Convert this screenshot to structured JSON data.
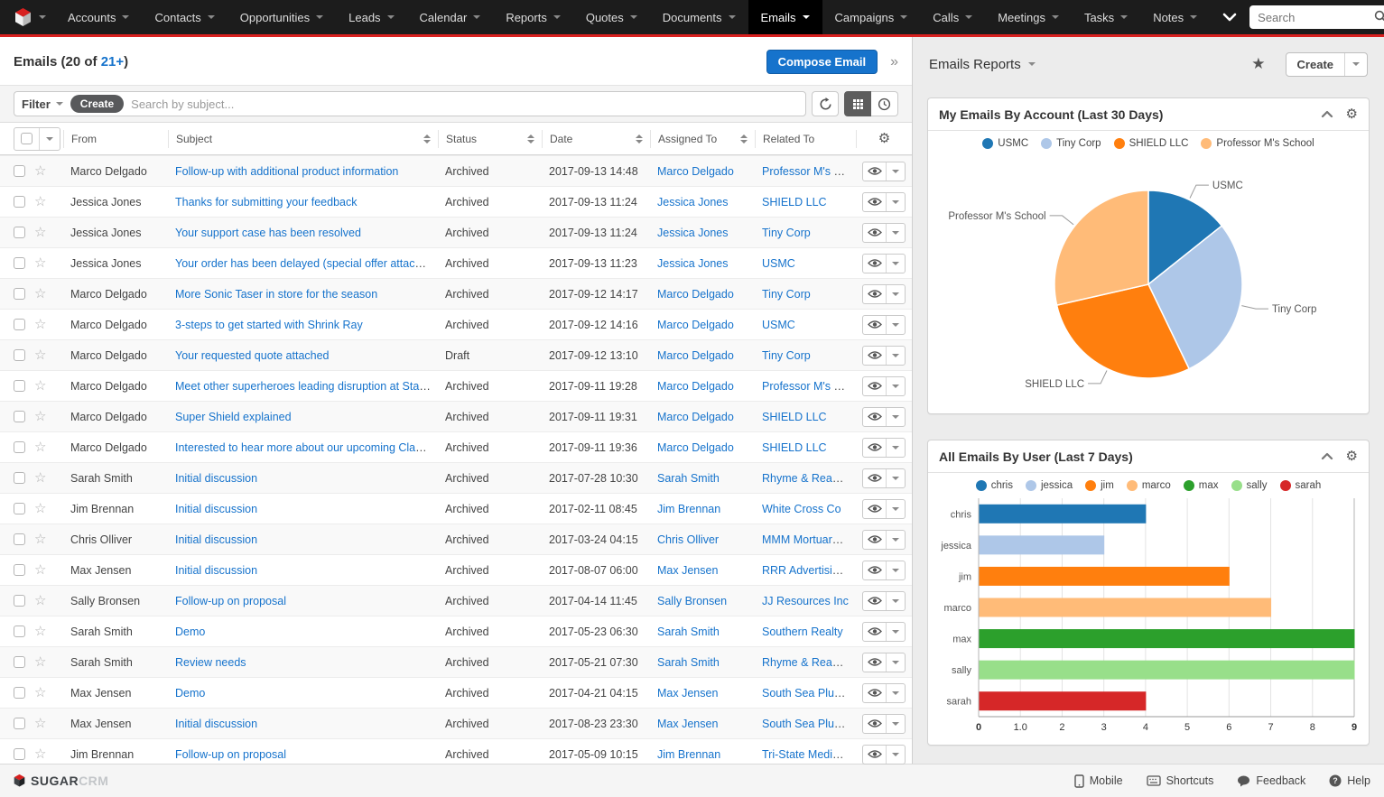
{
  "nav": {
    "items": [
      "Accounts",
      "Contacts",
      "Opportunities",
      "Leads",
      "Calendar",
      "Reports",
      "Quotes",
      "Documents",
      "Emails",
      "Campaigns",
      "Calls",
      "Meetings",
      "Tasks",
      "Notes"
    ],
    "active_item": "Emails",
    "search_placeholder": "Search",
    "notification_count": "0"
  },
  "list_header": {
    "title_prefix": "Emails (20 of ",
    "title_link": "21+",
    "title_suffix": ")",
    "compose_button": "Compose Email",
    "collapse_chevron": "»"
  },
  "filter_bar": {
    "filter_label": "Filter",
    "create_pill": "Create",
    "search_placeholder": "Search by subject..."
  },
  "table": {
    "columns": [
      {
        "label": "From",
        "sortable": false
      },
      {
        "label": "Subject",
        "sortable": true
      },
      {
        "label": "Status",
        "sortable": true
      },
      {
        "label": "Date",
        "sortable": true
      },
      {
        "label": "Assigned To",
        "sortable": true
      },
      {
        "label": "Related To",
        "sortable": false
      }
    ],
    "rows": [
      {
        "from": "Marco Delgado",
        "subject": "Follow-up with additional product information",
        "status": "Archived",
        "date": "2017-09-13 14:48",
        "assigned_to": "Marco Delgado",
        "related_to": "Professor M's Sch..."
      },
      {
        "from": "Jessica Jones",
        "subject": "Thanks for submitting your feedback",
        "status": "Archived",
        "date": "2017-09-13 11:24",
        "assigned_to": "Jessica Jones",
        "related_to": "SHIELD LLC"
      },
      {
        "from": "Jessica Jones",
        "subject": "Your support case has been resolved",
        "status": "Archived",
        "date": "2017-09-13 11:24",
        "assigned_to": "Jessica Jones",
        "related_to": "Tiny Corp"
      },
      {
        "from": "Jessica Jones",
        "subject": "Your order has been delayed (special offer attached)",
        "status": "Archived",
        "date": "2017-09-13 11:23",
        "assigned_to": "Jessica Jones",
        "related_to": "USMC"
      },
      {
        "from": "Marco Delgado",
        "subject": "More Sonic Taser in store for the season",
        "status": "Archived",
        "date": "2017-09-12 14:17",
        "assigned_to": "Marco Delgado",
        "related_to": "Tiny Corp"
      },
      {
        "from": "Marco Delgado",
        "subject": "3-steps to get started with Shrink Ray",
        "status": "Archived",
        "date": "2017-09-12 14:16",
        "assigned_to": "Marco Delgado",
        "related_to": "USMC"
      },
      {
        "from": "Marco Delgado",
        "subject": "Your requested quote attached",
        "status": "Draft",
        "date": "2017-09-12 13:10",
        "assigned_to": "Marco Delgado",
        "related_to": "Tiny Corp"
      },
      {
        "from": "Marco Delgado",
        "subject": "Meet other superheroes leading disruption at StarkCon",
        "status": "Archived",
        "date": "2017-09-11 19:28",
        "assigned_to": "Marco Delgado",
        "related_to": "Professor M's Sch..."
      },
      {
        "from": "Marco Delgado",
        "subject": "Super Shield explained",
        "status": "Archived",
        "date": "2017-09-11 19:31",
        "assigned_to": "Marco Delgado",
        "related_to": "SHIELD LLC"
      },
      {
        "from": "Marco Delgado",
        "subject": "Interested to hear more about our upcoming Claws II?",
        "status": "Archived",
        "date": "2017-09-11 19:36",
        "assigned_to": "Marco Delgado",
        "related_to": "SHIELD LLC"
      },
      {
        "from": "Sarah Smith",
        "subject": "Initial discussion",
        "status": "Archived",
        "date": "2017-07-28 10:30",
        "assigned_to": "Sarah Smith",
        "related_to": "Rhyme & Reason I..."
      },
      {
        "from": "Jim Brennan",
        "subject": "Initial discussion",
        "status": "Archived",
        "date": "2017-02-11 08:45",
        "assigned_to": "Jim Brennan",
        "related_to": "White Cross Co"
      },
      {
        "from": "Chris Olliver",
        "subject": "Initial discussion",
        "status": "Archived",
        "date": "2017-03-24 04:15",
        "assigned_to": "Chris Olliver",
        "related_to": "MMM Mortuary C..."
      },
      {
        "from": "Max Jensen",
        "subject": "Initial discussion",
        "status": "Archived",
        "date": "2017-08-07 06:00",
        "assigned_to": "Max Jensen",
        "related_to": "RRR Advertising Inc."
      },
      {
        "from": "Sally Bronsen",
        "subject": "Follow-up on proposal",
        "status": "Archived",
        "date": "2017-04-14 11:45",
        "assigned_to": "Sally Bronsen",
        "related_to": "JJ Resources Inc"
      },
      {
        "from": "Sarah Smith",
        "subject": "Demo",
        "status": "Archived",
        "date": "2017-05-23 06:30",
        "assigned_to": "Sarah Smith",
        "related_to": "Southern Realty"
      },
      {
        "from": "Sarah Smith",
        "subject": "Review needs",
        "status": "Archived",
        "date": "2017-05-21 07:30",
        "assigned_to": "Sarah Smith",
        "related_to": "Rhyme & Reason I..."
      },
      {
        "from": "Max Jensen",
        "subject": "Demo",
        "status": "Archived",
        "date": "2017-04-21 04:15",
        "assigned_to": "Max Jensen",
        "related_to": "South Sea Plumbi..."
      },
      {
        "from": "Max Jensen",
        "subject": "Initial discussion",
        "status": "Archived",
        "date": "2017-08-23 23:30",
        "assigned_to": "Max Jensen",
        "related_to": "South Sea Plumbi..."
      },
      {
        "from": "Jim Brennan",
        "subject": "Follow-up on proposal",
        "status": "Archived",
        "date": "2017-05-09 10:15",
        "assigned_to": "Jim Brennan",
        "related_to": "Tri-State Medical ..."
      }
    ]
  },
  "reports_panel": {
    "title": "Emails Reports",
    "create_button": "Create"
  },
  "chart_data": [
    {
      "type": "pie",
      "title": "My Emails By Account (Last 30 Days)",
      "labels": [
        "USMC",
        "Tiny Corp",
        "SHIELD LLC",
        "Professor M's School"
      ],
      "values": [
        2,
        4,
        4,
        4
      ],
      "colors": [
        "#1f77b4",
        "#aec7e8",
        "#ff7f0e",
        "#ffbb78"
      ],
      "legend_position": "top"
    },
    {
      "type": "bar",
      "orientation": "horizontal",
      "title": "All Emails By User (Last 7 Days)",
      "categories": [
        "chris",
        "jessica",
        "jim",
        "marco",
        "max",
        "sally",
        "sarah"
      ],
      "values": [
        4,
        3,
        6,
        7,
        9,
        9,
        4
      ],
      "colors": [
        "#1f77b4",
        "#aec7e8",
        "#ff7f0e",
        "#ffbb78",
        "#2ca02c",
        "#98df8a",
        "#d62728"
      ],
      "xlim": [
        0,
        9
      ],
      "xticks": [
        "0",
        "1.0",
        "2",
        "3",
        "4",
        "5",
        "6",
        "7",
        "8",
        "9"
      ],
      "grid": true,
      "legend_position": "top"
    }
  ],
  "footer": {
    "brand_bold": "SUGAR",
    "brand_light": "CRM",
    "links": [
      "Mobile",
      "Shortcuts",
      "Feedback",
      "Help"
    ]
  },
  "colors": {
    "accent_red": "#d8201f",
    "primary_blue": "#1673cc",
    "link_blue": "#1673cc"
  }
}
